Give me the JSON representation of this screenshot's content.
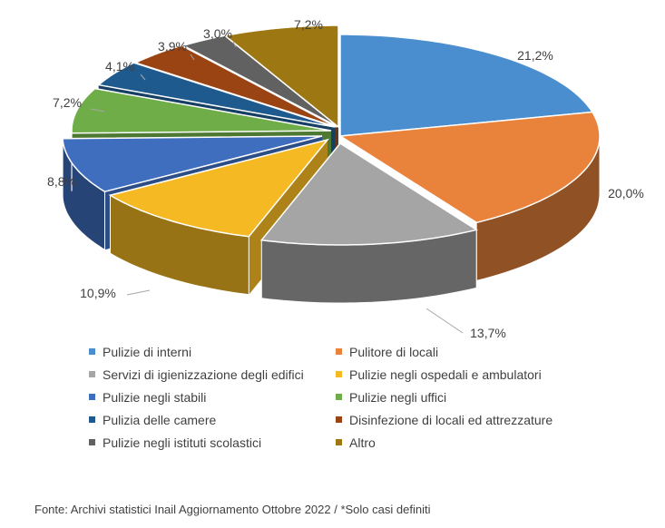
{
  "chart_data": {
    "type": "pie",
    "style": "3d-exploded",
    "slices": [
      {
        "name": "Pulizie di interni",
        "value": 21.2,
        "label": "21,2%",
        "color": "#4a8ed0"
      },
      {
        "name": "Pulitore di locali",
        "value": 20.0,
        "label": "20,0%",
        "color": "#e9823a"
      },
      {
        "name": "Servizi di igienizzazione degli edifici",
        "value": 13.7,
        "label": "13,7%",
        "color": "#a5a5a5"
      },
      {
        "name": "Pulizie negli ospedali e ambulatori",
        "value": 10.9,
        "label": "10,9%",
        "color": "#f5b924"
      },
      {
        "name": "Pulizie negli stabili",
        "value": 8.8,
        "label": "8,8%",
        "color": "#3f6ebf"
      },
      {
        "name": "Pulizie negli uffici",
        "value": 7.2,
        "label": "7,2%",
        "color": "#6fad48"
      },
      {
        "name": "Pulizia delle camere",
        "value": 4.1,
        "label": "4,1%",
        "color": "#1f5a8f"
      },
      {
        "name": "Disinfezione di locali ed attrezzature",
        "value": 3.9,
        "label": "3,9%",
        "color": "#9a4413"
      },
      {
        "name": "Pulizie negli istituti scolastici",
        "value": 3.0,
        "label": "3,0%",
        "color": "#616161"
      },
      {
        "name": "Altro",
        "value": 7.2,
        "label": "7,2%",
        "color": "#9d7711"
      }
    ],
    "legend_position": "bottom"
  },
  "footer": "Fonte: Archivi statistici Inail Aggiornamento Ottobre 2022 / *Solo casi definiti"
}
